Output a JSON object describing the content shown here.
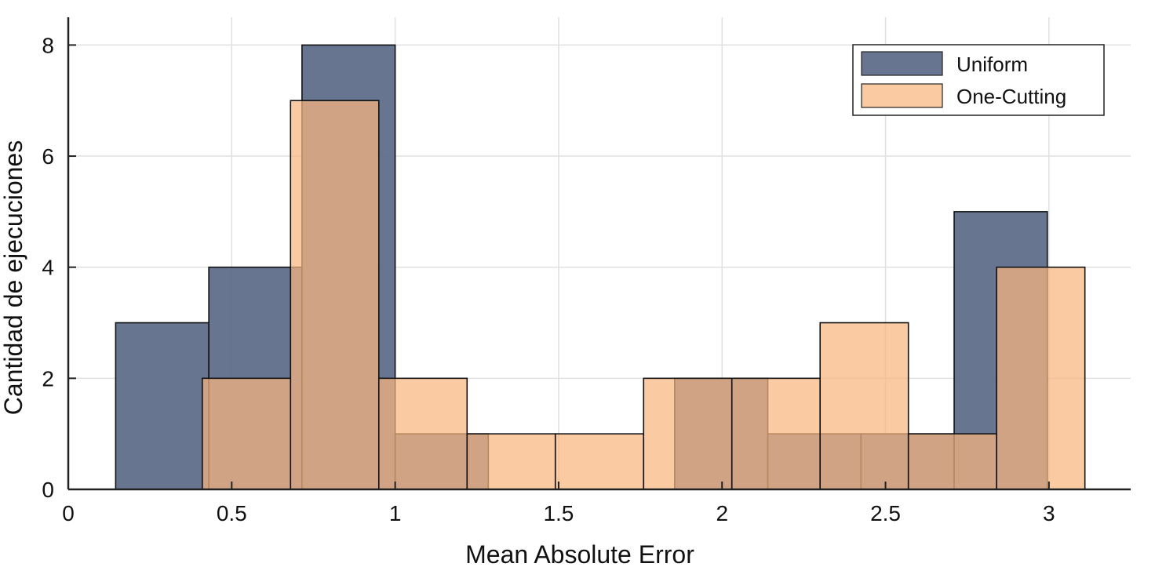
{
  "chart_data": {
    "type": "bar",
    "xlabel": "Mean Absolute Error",
    "ylabel": "Cantidad de ejecuciones",
    "xlim": [
      0,
      3.25
    ],
    "ylim": [
      0,
      8.5
    ],
    "x_ticks": [
      "0",
      "0.5",
      "1",
      "1.5",
      "2",
      "2.5",
      "3"
    ],
    "y_ticks": [
      "0",
      "2",
      "4",
      "6",
      "8"
    ],
    "grid": true,
    "legend_position": "top-right",
    "series": [
      {
        "name": "Uniform",
        "color": "#5f6e8a",
        "bin_edges": [
          0.145,
          0.43,
          0.715,
          1.0,
          1.285,
          1.57,
          1.855,
          2.14,
          2.425,
          2.71,
          2.995
        ],
        "values": [
          3,
          4,
          8,
          1,
          0,
          0,
          2,
          1,
          1,
          5
        ]
      },
      {
        "name": "One-Cutting",
        "color": "#f8b57f",
        "bin_edges": [
          0.41,
          0.68,
          0.95,
          1.22,
          1.49,
          1.76,
          2.03,
          2.3,
          2.57,
          2.84,
          3.11
        ],
        "values": [
          2,
          7,
          2,
          1,
          1,
          2,
          2,
          3,
          1,
          4
        ]
      }
    ]
  }
}
